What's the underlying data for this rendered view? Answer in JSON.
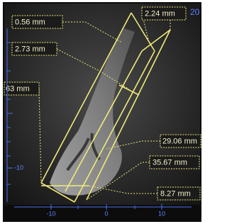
{
  "header": {
    "scale_label": "20"
  },
  "measurements": [
    {
      "label": "0.56 mm"
    },
    {
      "label": "2.24 mm"
    },
    {
      "label": "2.73 mm"
    },
    {
      "label": "63 mm"
    },
    {
      "label": "29.06 mm"
    },
    {
      "label": "35.67 mm"
    },
    {
      "label": "8.27 mm"
    }
  ],
  "ruler": {
    "left": [
      "-10"
    ],
    "bottom": [
      "-10",
      "0",
      "10"
    ]
  }
}
